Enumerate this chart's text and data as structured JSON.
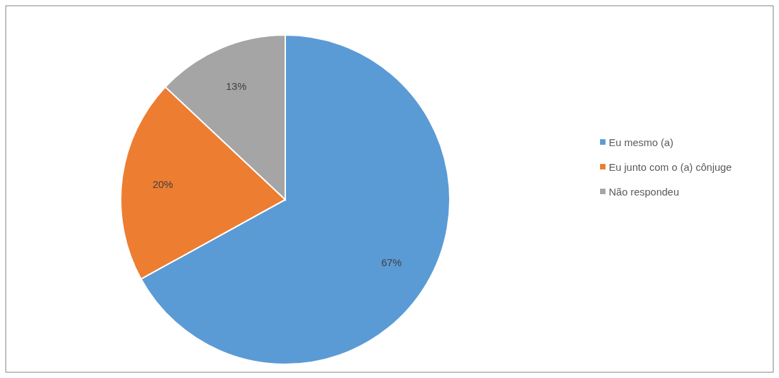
{
  "chart_data": {
    "type": "pie",
    "categories": [
      "Eu mesmo (a)",
      "Eu junto com o (a) cônjuge",
      "Não respondeu"
    ],
    "values": [
      67,
      20,
      13
    ],
    "colors": [
      "#5b9bd5",
      "#ed7d31",
      "#a5a5a5"
    ],
    "value_labels": [
      "67%",
      "20%",
      "13%"
    ],
    "legend": "right"
  }
}
